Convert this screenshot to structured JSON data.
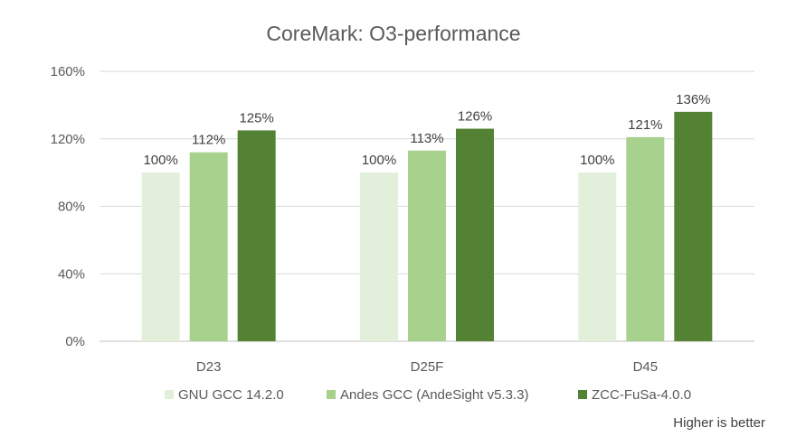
{
  "chart_data": {
    "type": "bar",
    "title": "CoreMark: O3-performance",
    "categories": [
      "D23",
      "D25F",
      "D45"
    ],
    "series": [
      {
        "name": "GNU GCC 14.2.0",
        "color": "#e2efda",
        "values": [
          100,
          100,
          100
        ],
        "labels": [
          "100%",
          "100%",
          "100%"
        ]
      },
      {
        "name": "Andes GCC (AndeSight v5.3.3)",
        "color": "#a9d18e",
        "values": [
          112,
          113,
          121
        ],
        "labels": [
          "112%",
          "113%",
          "121%"
        ]
      },
      {
        "name": "ZCC-FuSa-4.0.0",
        "color": "#548235",
        "values": [
          125,
          126,
          136
        ],
        "labels": [
          "125%",
          "126%",
          "136%"
        ]
      }
    ],
    "y_ticks": [
      "0%",
      "40%",
      "80%",
      "120%",
      "160%"
    ],
    "ylim": [
      0,
      160
    ],
    "grid": true,
    "legend_position": "bottom",
    "footnote": "Higher is better"
  }
}
